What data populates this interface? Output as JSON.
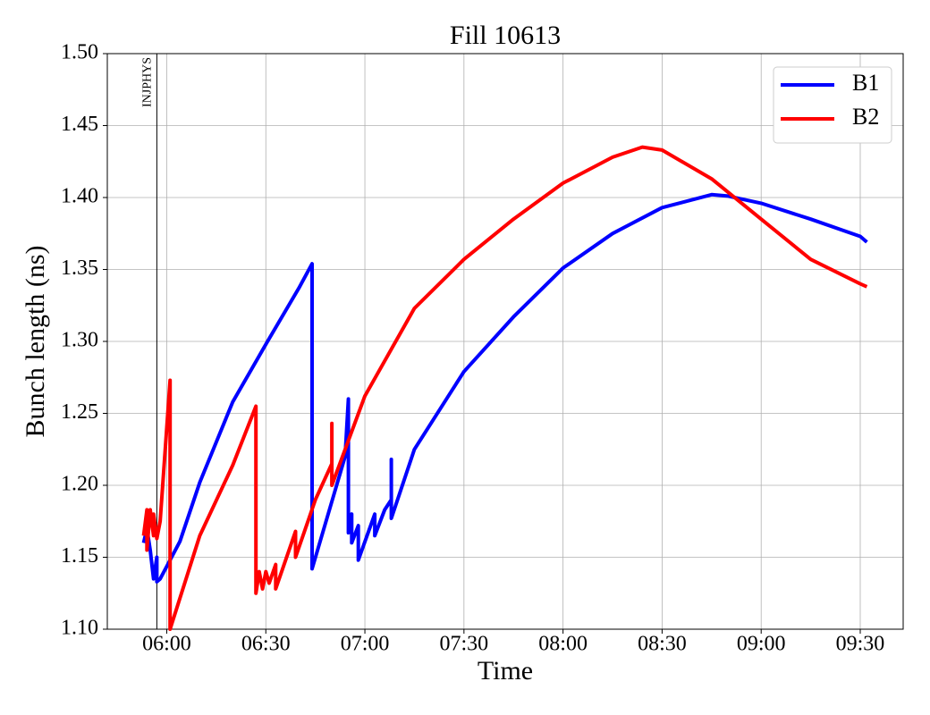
{
  "chart_data": {
    "type": "line",
    "title": "Fill 10613",
    "xlabel": "Time",
    "ylabel": "Bunch length (ns)",
    "xlim": [
      "05:42",
      "09:43"
    ],
    "xticks": [
      "06:00",
      "06:30",
      "07:00",
      "07:30",
      "08:00",
      "08:30",
      "09:00",
      "09:30"
    ],
    "ylim": [
      1.1,
      1.5
    ],
    "yticks": [
      {
        "value": 1.1,
        "label": "1.10"
      },
      1.15,
      {
        "value": 1.2,
        "label": "1.20"
      },
      1.25,
      {
        "value": 1.3,
        "label": "1.30"
      },
      1.35,
      {
        "value": 1.4,
        "label": "1.40"
      },
      1.45,
      {
        "value": 1.5,
        "label": "1.50"
      }
    ],
    "grid": true,
    "legend": "upper right",
    "annotations": [
      {
        "text": "INJPHYS",
        "x": "05:57"
      }
    ],
    "series": [
      {
        "name": "B1",
        "color": "#0000ff",
        "x": [
          "05:53",
          "05:54",
          "05:55",
          "05:56",
          "05:57",
          "05:57",
          "05:58",
          "06:04",
          "06:10",
          "06:20",
          "06:30",
          "06:40",
          "06:44",
          "06:44",
          "06:54",
          "06:55",
          "06:55",
          "06:56",
          "06:56",
          "06:58",
          "06:58",
          "07:03",
          "07:03",
          "07:06",
          "07:08",
          "07:08",
          "07:08",
          "07:15",
          "07:30",
          "07:45",
          "08:00",
          "08:15",
          "08:30",
          "08:45",
          "08:50",
          "09:00",
          "09:15",
          "09:30",
          "09:32"
        ],
        "values": [
          1.16,
          1.17,
          1.155,
          1.135,
          1.15,
          1.133,
          1.135,
          1.161,
          1.202,
          1.258,
          1.298,
          1.337,
          1.354,
          1.142,
          1.22,
          1.26,
          1.167,
          1.18,
          1.16,
          1.172,
          1.148,
          1.18,
          1.165,
          1.183,
          1.19,
          1.218,
          1.177,
          1.225,
          1.279,
          1.317,
          1.351,
          1.375,
          1.393,
          1.402,
          1.401,
          1.396,
          1.385,
          1.373,
          1.369
        ]
      },
      {
        "name": "B2",
        "color": "#ff0000",
        "x": [
          "05:53",
          "05:54",
          "05:54",
          "05:55",
          "05:56",
          "05:56",
          "05:57",
          "05:58",
          "06:01",
          "06:01",
          "06:10",
          "06:20",
          "06:27",
          "06:27",
          "06:28",
          "06:29",
          "06:30",
          "06:31",
          "06:33",
          "06:33",
          "06:39",
          "06:39",
          "06:45",
          "06:50",
          "06:50",
          "06:50",
          "07:00",
          "07:15",
          "07:30",
          "07:45",
          "08:00",
          "08:15",
          "08:24",
          "08:30",
          "08:45",
          "09:00",
          "09:15",
          "09:30",
          "09:32"
        ],
        "values": [
          1.165,
          1.183,
          1.155,
          1.183,
          1.165,
          1.18,
          1.163,
          1.175,
          1.273,
          1.1,
          1.165,
          1.214,
          1.255,
          1.125,
          1.14,
          1.128,
          1.14,
          1.132,
          1.145,
          1.128,
          1.168,
          1.15,
          1.19,
          1.215,
          1.243,
          1.2,
          1.262,
          1.323,
          1.357,
          1.385,
          1.41,
          1.428,
          1.435,
          1.433,
          1.413,
          1.385,
          1.357,
          1.34,
          1.338
        ]
      }
    ]
  }
}
